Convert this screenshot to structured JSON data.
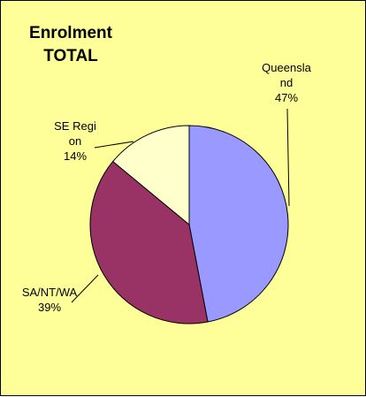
{
  "chart_data": {
    "type": "pie",
    "title": "Enrolment TOTAL",
    "categories": [
      "Queensland",
      "SA/NT/WA",
      "SE Region"
    ],
    "values": [
      47,
      39,
      14
    ],
    "value_labels": [
      "47%",
      "39%",
      "14%"
    ],
    "colors": [
      "#9999ff",
      "#993366",
      "#ffffcc"
    ]
  }
}
